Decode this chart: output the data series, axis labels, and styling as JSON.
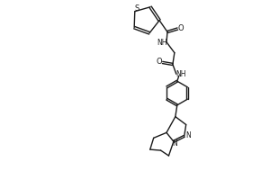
{
  "bg_color": "#ffffff",
  "line_color": "#1a1a1a",
  "line_width": 1.0,
  "figsize": [
    3.0,
    2.0
  ],
  "dpi": 100,
  "xlim": [
    0,
    3.0
  ],
  "ylim": [
    0,
    2.0
  ]
}
